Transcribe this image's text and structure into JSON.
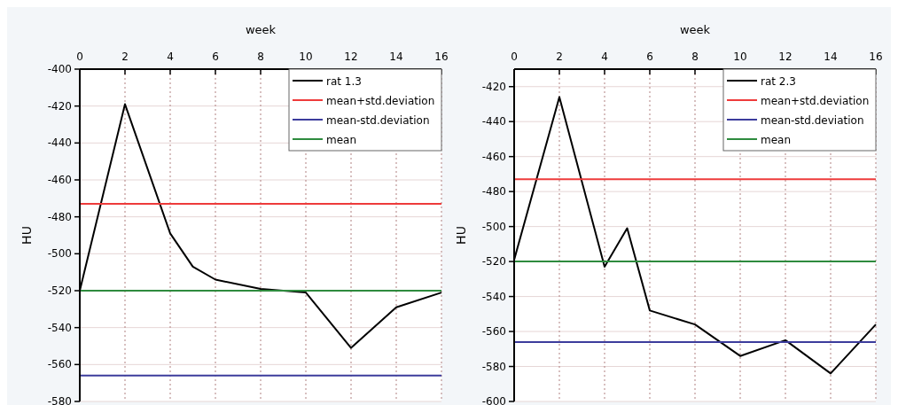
{
  "chart_data": [
    {
      "type": "line",
      "xlabel": "week",
      "ylabel": "HU",
      "xlim": [
        0,
        16
      ],
      "xticks": [
        0,
        2,
        4,
        6,
        8,
        10,
        12,
        14,
        16
      ],
      "ylim": [
        -580,
        -400
      ],
      "yticks": [
        -580,
        -560,
        -540,
        -520,
        -500,
        -480,
        -460,
        -440,
        -420,
        -400
      ],
      "grid": true,
      "legend": "top right",
      "marker": "none",
      "line_style": "solid",
      "series": [
        {
          "name": "rat 1.3",
          "color": "#000000",
          "x": [
            0,
            2,
            4,
            5,
            6,
            8,
            10,
            12,
            14,
            16
          ],
          "values": [
            -520,
            -419,
            -489,
            -507,
            -514,
            -519,
            -521,
            -551,
            -529,
            -521
          ]
        },
        {
          "name": "mean+std.deviation",
          "color": "#ee3b3b",
          "x": [
            0,
            16
          ],
          "values": [
            -473,
            -473
          ]
        },
        {
          "name": "mean-std.deviation",
          "color": "#3c3c9c",
          "x": [
            0,
            16
          ],
          "values": [
            -566,
            -566
          ]
        },
        {
          "name": "mean",
          "color": "#2e8b3e",
          "x": [
            0,
            16
          ],
          "values": [
            -520,
            -520
          ]
        }
      ]
    },
    {
      "type": "line",
      "xlabel": "week",
      "ylabel": "HU",
      "xlim": [
        0,
        16
      ],
      "xticks": [
        0,
        2,
        4,
        6,
        8,
        10,
        12,
        14,
        16
      ],
      "ylim": [
        -600,
        -410
      ],
      "yticks": [
        -600,
        -580,
        -560,
        -540,
        -520,
        -500,
        -480,
        -460,
        -440,
        -420
      ],
      "grid": true,
      "legend": "top right",
      "marker": "none",
      "line_style": "solid",
      "series": [
        {
          "name": "rat 2.3",
          "color": "#000000",
          "x": [
            0,
            2,
            4,
            5,
            6,
            8,
            10,
            12,
            14,
            16
          ],
          "values": [
            -519,
            -426,
            -523,
            -501,
            -548,
            -556,
            -574,
            -565,
            -584,
            -556
          ]
        },
        {
          "name": "mean+std.deviation",
          "color": "#ee3b3b",
          "x": [
            0,
            16
          ],
          "values": [
            -473,
            -473
          ]
        },
        {
          "name": "mean-std.deviation",
          "color": "#3c3c9c",
          "x": [
            0,
            16
          ],
          "values": [
            -566,
            -566
          ]
        },
        {
          "name": "mean",
          "color": "#2e8b3e",
          "x": [
            0,
            16
          ],
          "values": [
            -520,
            -520
          ]
        }
      ]
    }
  ]
}
